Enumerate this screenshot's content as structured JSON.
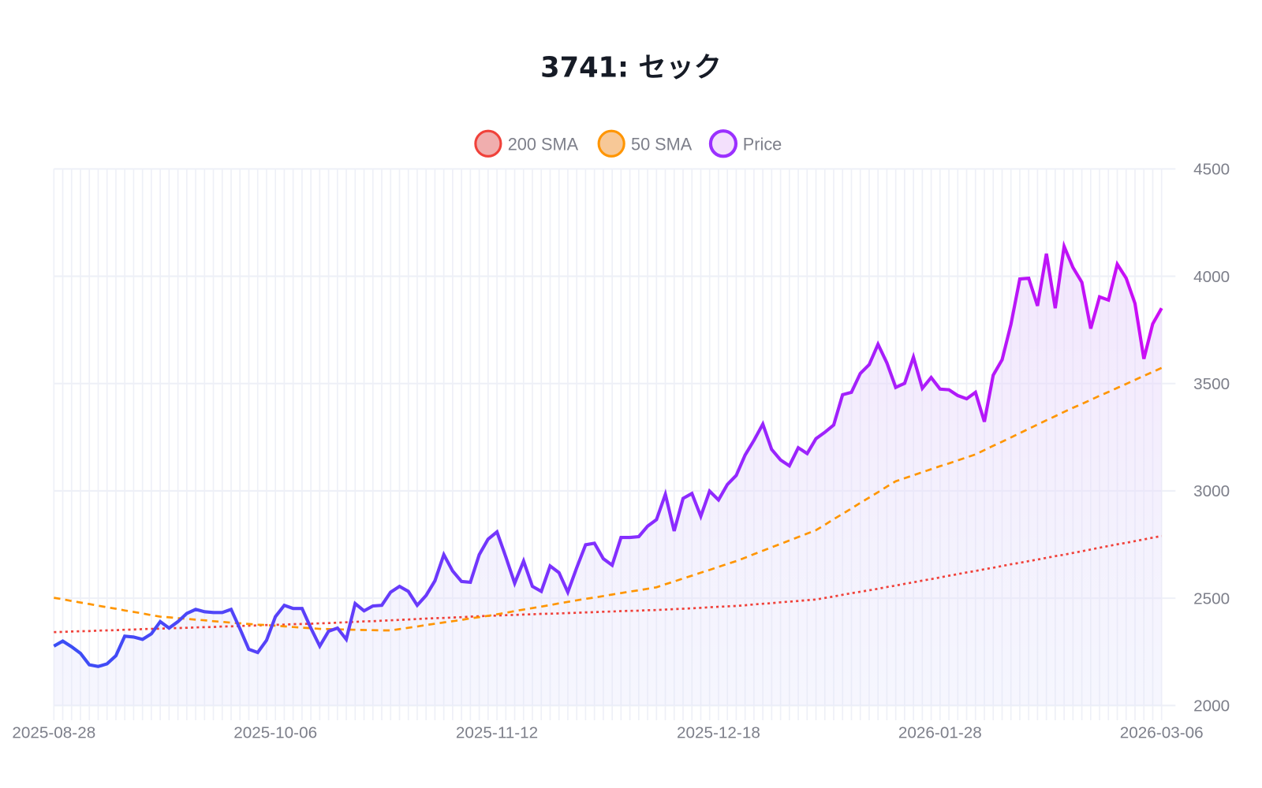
{
  "chart_data": {
    "type": "line",
    "title": "3741: セック",
    "legend": {
      "placement": "top-center",
      "entries": [
        {
          "name": "200 SMA",
          "stroke": "#f0413a",
          "fill": "#f0aeae"
        },
        {
          "name": "50 SMA",
          "stroke": "#ff9500",
          "fill": "#f7c897"
        },
        {
          "name": "Price",
          "stroke": "#9b30ff",
          "fill": "#f3e0fc"
        }
      ]
    },
    "x_tick_labels": [
      "2025-08-28",
      "2025-10-06",
      "2025-11-12",
      "2025-12-18",
      "2026-01-28",
      "2026-03-06"
    ],
    "y_ticks": [
      2000,
      2500,
      3000,
      3500,
      4000,
      4500
    ],
    "ylim": [
      2000,
      4500
    ],
    "y_axis_side": "right",
    "grid": true,
    "colors": {
      "price_start": "#3a4ef5",
      "price_mid": "#8a2cff",
      "price_end": "#cc0df5",
      "sma200": "#f0413a",
      "sma50": "#ff9500",
      "grid": "#eef0f7"
    },
    "series": [
      {
        "name": "Price",
        "style": "solid",
        "values": [
          2277,
          2300,
          2274,
          2243,
          2190,
          2182,
          2194,
          2232,
          2323,
          2319,
          2308,
          2334,
          2391,
          2361,
          2391,
          2429,
          2448,
          2437,
          2433,
          2433,
          2448,
          2357,
          2262,
          2247,
          2304,
          2414,
          2467,
          2452,
          2452,
          2361,
          2277,
          2346,
          2361,
          2308,
          2475,
          2441,
          2464,
          2467,
          2528,
          2555,
          2532,
          2467,
          2513,
          2581,
          2703,
          2627,
          2578,
          2574,
          2703,
          2775,
          2809,
          2692,
          2570,
          2673,
          2555,
          2532,
          2650,
          2619,
          2528,
          2642,
          2749,
          2756,
          2684,
          2654,
          2783,
          2783,
          2787,
          2836,
          2866,
          2984,
          2813,
          2965,
          2988,
          2882,
          2999,
          2958,
          3030,
          3072,
          3167,
          3235,
          3311,
          3193,
          3144,
          3117,
          3201,
          3174,
          3243,
          3273,
          3307,
          3448,
          3459,
          3547,
          3588,
          3683,
          3596,
          3482,
          3501,
          3623,
          3478,
          3528,
          3474,
          3471,
          3444,
          3429,
          3459,
          3322,
          3539,
          3611,
          3775,
          3987,
          3991,
          3862,
          4105,
          3851,
          4139,
          4041,
          3972,
          3756,
          3904,
          3889,
          4056,
          3991,
          3873,
          3615,
          3778,
          3851
        ]
      },
      {
        "name": "50 SMA",
        "style": "dashed",
        "values": [
          2502,
          2495,
          2487,
          2480,
          2473,
          2465,
          2458,
          2451,
          2443,
          2436,
          2429,
          2421,
          2414,
          2411,
          2407,
          2404,
          2400,
          2397,
          2393,
          2390,
          2386,
          2383,
          2380,
          2377,
          2375,
          2372,
          2369,
          2366,
          2363,
          2360,
          2357,
          2356,
          2355,
          2354,
          2353,
          2352,
          2351,
          2350,
          2350,
          2356,
          2362,
          2368,
          2375,
          2381,
          2387,
          2393,
          2399,
          2406,
          2412,
          2418,
          2425,
          2432,
          2440,
          2447,
          2454,
          2461,
          2468,
          2476,
          2483,
          2490,
          2497,
          2503,
          2510,
          2517,
          2524,
          2531,
          2537,
          2544,
          2551,
          2565,
          2578,
          2592,
          2605,
          2619,
          2632,
          2646,
          2660,
          2673,
          2689,
          2705,
          2721,
          2737,
          2753,
          2769,
          2785,
          2801,
          2817,
          2842,
          2868,
          2893,
          2918,
          2944,
          2969,
          2994,
          3020,
          3045,
          3059,
          3073,
          3087,
          3101,
          3115,
          3128,
          3142,
          3156,
          3170,
          3190,
          3210,
          3229,
          3249,
          3269,
          3289,
          3309,
          3329,
          3348,
          3368,
          3387,
          3405,
          3424,
          3443,
          3461,
          3480,
          3498,
          3517,
          3536,
          3554,
          3573
        ]
      },
      {
        "name": "200 SMA",
        "style": "dotted",
        "values": [
          2342,
          2343,
          2345,
          2346,
          2347,
          2349,
          2350,
          2351,
          2353,
          2354,
          2356,
          2357,
          2358,
          2360,
          2361,
          2362,
          2364,
          2365,
          2366,
          2368,
          2369,
          2371,
          2372,
          2373,
          2375,
          2376,
          2377,
          2379,
          2380,
          2381,
          2383,
          2384,
          2386,
          2388,
          2390,
          2392,
          2393,
          2395,
          2397,
          2399,
          2401,
          2403,
          2405,
          2407,
          2408,
          2410,
          2412,
          2414,
          2416,
          2418,
          2419,
          2421,
          2422,
          2424,
          2425,
          2427,
          2428,
          2429,
          2431,
          2432,
          2434,
          2435,
          2437,
          2438,
          2440,
          2441,
          2442,
          2444,
          2445,
          2447,
          2449,
          2451,
          2453,
          2455,
          2458,
          2460,
          2462,
          2464,
          2467,
          2471,
          2474,
          2477,
          2481,
          2484,
          2487,
          2491,
          2494,
          2501,
          2508,
          2516,
          2523,
          2530,
          2537,
          2544,
          2552,
          2559,
          2567,
          2574,
          2582,
          2589,
          2597,
          2605,
          2612,
          2620,
          2627,
          2635,
          2642,
          2650,
          2658,
          2665,
          2673,
          2680,
          2688,
          2696,
          2703,
          2711,
          2719,
          2727,
          2735,
          2743,
          2751,
          2758,
          2766,
          2774,
          2782,
          2790
        ]
      }
    ]
  }
}
